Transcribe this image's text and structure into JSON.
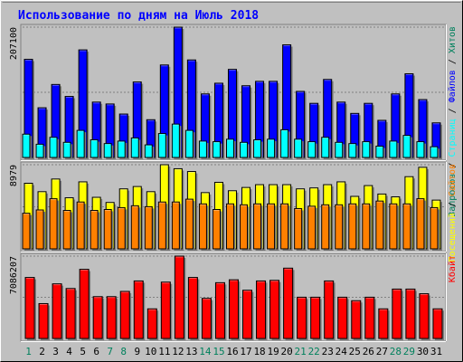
{
  "title": "Использование по дням на Июль 2018",
  "colors": {
    "background": "#c0c0c0",
    "title": "#0000ff",
    "hits": "#00805c",
    "files": "#0000ff",
    "pages": "#00ffff",
    "sites": "#ff8000",
    "visits": "#ffff00",
    "kbytes": "#ff0000",
    "weekday_label": "#000000",
    "weekend_label": "#00805c"
  },
  "chart_data": {
    "type": "bar",
    "x": [
      1,
      2,
      3,
      4,
      5,
      6,
      7,
      8,
      9,
      10,
      11,
      12,
      13,
      14,
      15,
      16,
      17,
      18,
      19,
      20,
      21,
      22,
      23,
      24,
      25,
      26,
      27,
      28,
      29,
      30,
      31
    ],
    "weekend_days": [
      1,
      7,
      8,
      14,
      15,
      21,
      22,
      28,
      29
    ],
    "panels": [
      {
        "id": "hits-files-pages",
        "ylim": [
          0,
          207100
        ],
        "max_label": "207100",
        "legend": [
          {
            "name": "Хитов",
            "color": "#00805c"
          },
          {
            "name": "Файлов",
            "color": "#0000ff"
          },
          {
            "name": "Страниц",
            "color": "#00ffff"
          },
          {
            "name": "Запросов",
            "color": "#00805c"
          }
        ],
        "separator": " / ",
        "series": [
          {
            "name": "Файлов",
            "color": "#0000ff",
            "values": [
              156000,
              79000,
              116000,
              97000,
              171000,
              88000,
              85000,
              69000,
              120000,
              60000,
              147000,
              207100,
              155000,
              101000,
              118000,
              140000,
              114000,
              121000,
              121000,
              179000,
              105000,
              86000,
              124000,
              88000,
              70000,
              86000,
              59000,
              101000,
              133000,
              92000,
              55000
            ]
          },
          {
            "name": "Страниц",
            "color": "#00ffff",
            "values": [
              37000,
              21000,
              32000,
              24000,
              43000,
              28000,
              22000,
              26000,
              31000,
              20000,
              38000,
              53000,
              43000,
              26000,
              25000,
              29000,
              24000,
              28000,
              29000,
              44000,
              29000,
              25000,
              32000,
              24000,
              22000,
              25000,
              18000,
              26000,
              35000,
              25000,
              17000
            ]
          }
        ]
      },
      {
        "id": "sites-visits",
        "ylim": [
          0,
          8979
        ],
        "max_label": "8979",
        "legend": [
          {
            "name": "Сайтов",
            "color": "#ff8000"
          },
          {
            "name": "Посещений",
            "color": "#ffff00"
          }
        ],
        "separator": " / ",
        "series": [
          {
            "name": "Посещений",
            "color": "#ffff00",
            "values": [
              7000,
              6100,
              7450,
              5450,
              7150,
              5500,
              4950,
              6400,
              6650,
              6100,
              8979,
              8550,
              8250,
              6000,
              7100,
              6200,
              6550,
              6850,
              6850,
              6850,
              6400,
              6500,
              6850,
              7150,
              5600,
              6750,
              5850,
              5550,
              7700,
              8700,
              5200
            ]
          },
          {
            "name": "Сайтов",
            "color": "#ff8000",
            "values": [
              3800,
              4150,
              5350,
              4100,
              5000,
              4100,
              4200,
              4400,
              4600,
              4500,
              5000,
              5000,
              5300,
              4800,
              4200,
              4800,
              4700,
              4800,
              4800,
              4800,
              4300,
              4550,
              4700,
              4700,
              4800,
              4800,
              5100,
              4800,
              4800,
              5350,
              4400
            ]
          }
        ]
      },
      {
        "id": "kbytes",
        "ylim": [
          0,
          7086207
        ],
        "max_label": "7086207",
        "legend": [
          {
            "name": "Кбайт",
            "color": "#ff0000"
          }
        ],
        "separator": "",
        "series": [
          {
            "name": "Кбайт",
            "color": "#ff0000",
            "values": [
              5250000,
              3000000,
              4700000,
              4300000,
              5950000,
              3600000,
              3600000,
              4050000,
              4950000,
              2550000,
              4850000,
              7086207,
              5250000,
              3450000,
              4800000,
              5050000,
              4150000,
              4950000,
              5000000,
              6050000,
              3550000,
              3550000,
              4950000,
              3550000,
              3250000,
              3550000,
              2550000,
              4250000,
              4250000,
              3850000,
              2550000
            ]
          }
        ]
      }
    ]
  }
}
